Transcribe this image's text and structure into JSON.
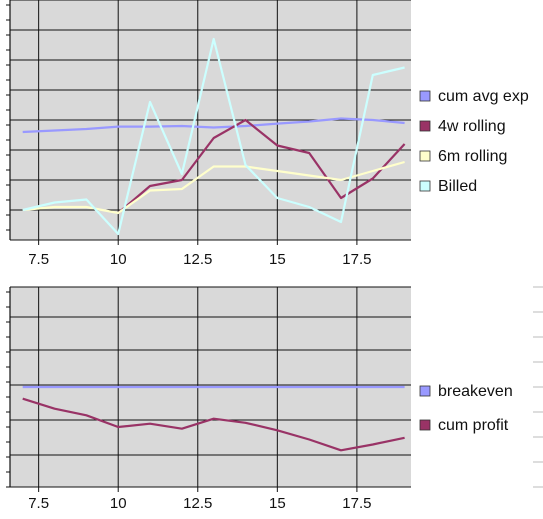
{
  "chart_data": [
    {
      "type": "line",
      "title": "",
      "xlabel": "",
      "ylabel": "",
      "xlim": [
        6.6,
        19.2
      ],
      "xticks": [
        7.5,
        10,
        12.5,
        15,
        17.5
      ],
      "xtick_labels": [
        "7.5",
        "10",
        "12.5",
        "15",
        "17.5"
      ],
      "ylim": [
        0,
        8
      ],
      "grid": true,
      "background_color": "#d9d9d9",
      "legend_position": "right",
      "series": [
        {
          "name": "cum avg exp",
          "color": "#9999ff",
          "x": [
            7,
            8,
            9,
            10,
            11,
            12,
            13,
            14,
            15,
            16,
            17,
            18,
            19
          ],
          "y": [
            3.6,
            3.65,
            3.7,
            3.78,
            3.78,
            3.8,
            3.75,
            3.8,
            3.88,
            3.95,
            4.05,
            4.0,
            3.9
          ]
        },
        {
          "name": "4w rolling",
          "color": "#993366",
          "x": [
            10,
            11,
            12,
            13,
            14,
            15,
            16,
            17,
            18,
            19
          ],
          "y": [
            0.9,
            1.8,
            2.0,
            3.4,
            4.0,
            3.15,
            2.9,
            1.4,
            2.05,
            3.2
          ]
        },
        {
          "name": "6m rolling",
          "color": "#ffffcc",
          "x": [
            7,
            8,
            9,
            10,
            11,
            12,
            13,
            14,
            15,
            16,
            17,
            18,
            19
          ],
          "y": [
            1.0,
            1.1,
            1.1,
            0.9,
            1.65,
            1.7,
            2.45,
            2.45,
            2.3,
            2.15,
            2.0,
            2.3,
            2.6
          ]
        },
        {
          "name": "Billed",
          "color": "#ccffff",
          "x": [
            7,
            8,
            9,
            10,
            11,
            12,
            13,
            14,
            15,
            16,
            17,
            18,
            19
          ],
          "y": [
            1.0,
            1.25,
            1.35,
            0.2,
            4.6,
            2.2,
            6.7,
            2.5,
            1.4,
            1.1,
            0.6,
            5.5,
            5.75
          ]
        }
      ]
    },
    {
      "type": "line",
      "title": "",
      "xlabel": "",
      "ylabel": "",
      "xlim": [
        6.6,
        19.2
      ],
      "xticks": [
        7.5,
        10,
        12.5,
        15,
        17.5
      ],
      "xtick_labels": [
        "7.5",
        "10",
        "12.5",
        "15",
        "17.5"
      ],
      "ylim": [
        -6,
        6
      ],
      "grid": true,
      "background_color": "#d9d9d9",
      "legend_position": "right",
      "series": [
        {
          "name": "breakeven",
          "color": "#9999ff",
          "x": [
            7,
            19
          ],
          "y": [
            0,
            0
          ]
        },
        {
          "name": "cum profit",
          "color": "#993366",
          "x": [
            7,
            8,
            9,
            10,
            11,
            12,
            13,
            14,
            15,
            16,
            17,
            18,
            19
          ],
          "y": [
            -0.7,
            -1.3,
            -1.7,
            -2.4,
            -2.2,
            -2.5,
            -1.9,
            -2.15,
            -2.6,
            -3.15,
            -3.8,
            -3.45,
            -3.05
          ]
        }
      ]
    }
  ]
}
